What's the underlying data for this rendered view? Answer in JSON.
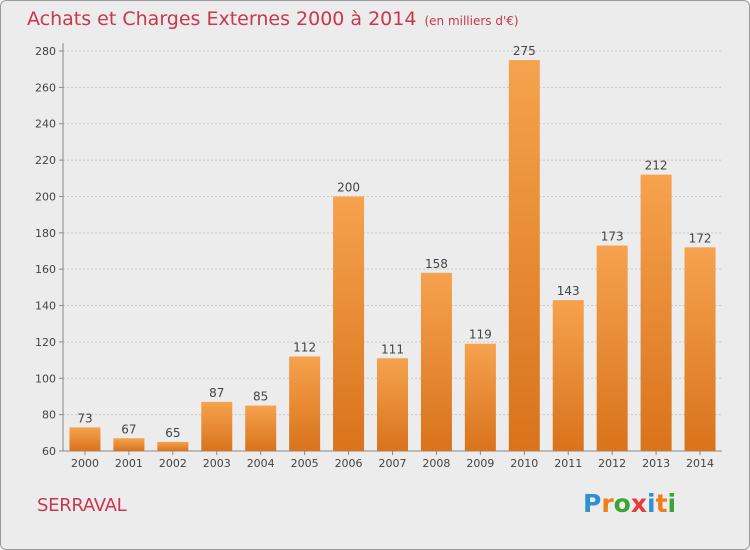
{
  "header": {
    "title": "Achats et Charges Externes 2000 à 2014",
    "unit": "(en milliers d'€)"
  },
  "footer": {
    "commune": "SERRAVAL",
    "logo_letters": [
      "P",
      "r",
      "o",
      "x",
      "i",
      "t",
      "i"
    ],
    "logo_colors": [
      "#2f8fd0",
      "#f07d1a",
      "#3aa535",
      "#e83b3b",
      "#2f8fd0",
      "#f07d1a",
      "#3aa535"
    ]
  },
  "colors": {
    "background": "#ececec",
    "bar_top": "#f6a24e",
    "bar_bottom": "#d9731c",
    "title": "#c8374f",
    "grid": "#c8c8c8",
    "text": "#444444"
  },
  "chart_data": {
    "type": "bar",
    "title": "Achats et Charges Externes 2000 à 2014",
    "subtitle": "(en milliers d'€)",
    "xlabel": "",
    "ylabel": "",
    "categories": [
      "2000",
      "2001",
      "2002",
      "2003",
      "2004",
      "2005",
      "2006",
      "2007",
      "2008",
      "2009",
      "2010",
      "2011",
      "2012",
      "2013",
      "2014"
    ],
    "values": [
      73,
      67,
      65,
      87,
      85,
      112,
      200,
      111,
      158,
      119,
      275,
      143,
      173,
      212,
      172
    ],
    "ylim": [
      60,
      280
    ],
    "yticks": [
      60,
      80,
      100,
      120,
      140,
      160,
      180,
      200,
      220,
      240,
      260,
      280
    ],
    "grid": true,
    "data_labels": true
  }
}
